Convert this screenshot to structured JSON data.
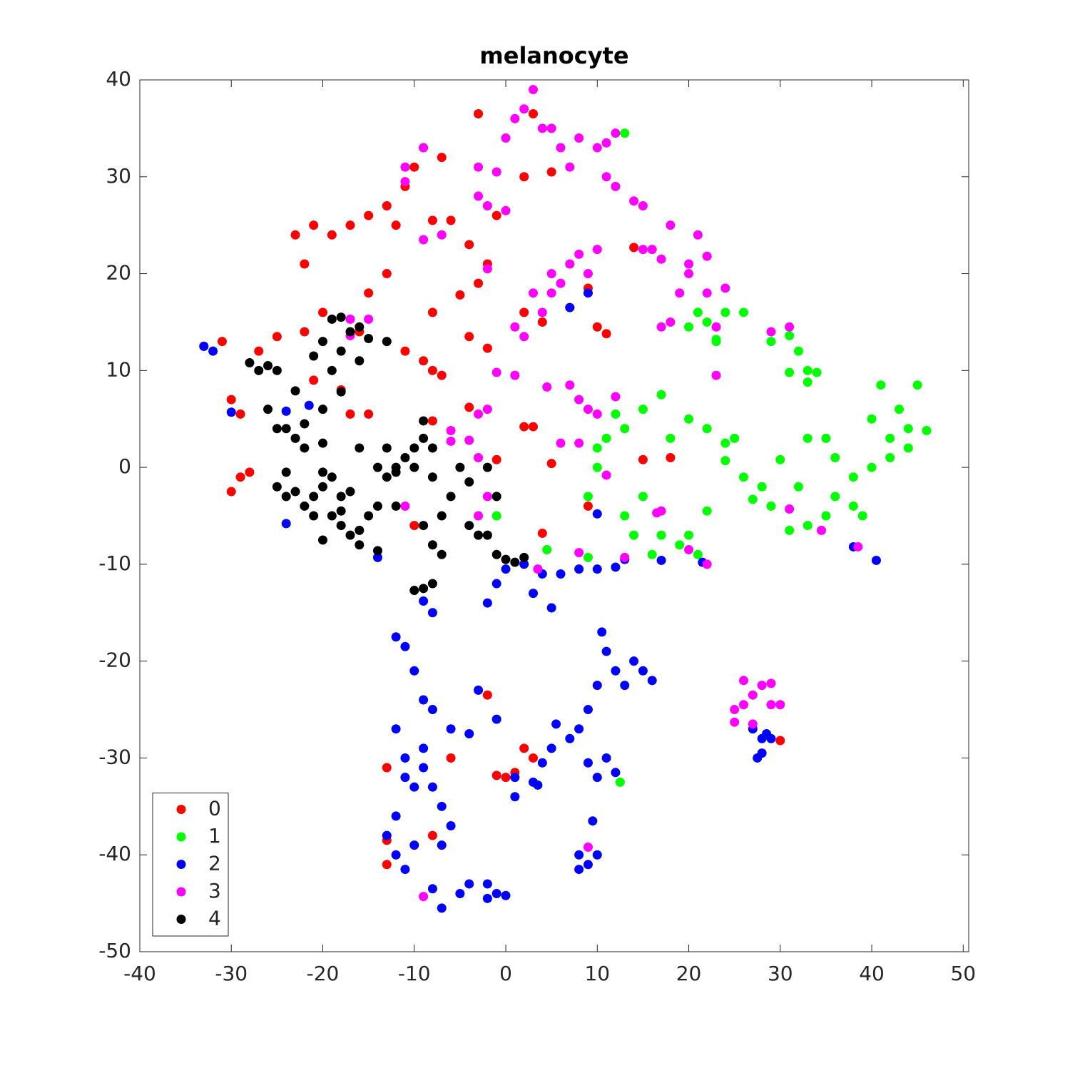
{
  "chart_data": {
    "type": "scatter",
    "title": "melanocyte",
    "xlim": [
      -40,
      50.6
    ],
    "ylim": [
      -50,
      40
    ],
    "xticks": [
      -40,
      -30,
      -20,
      -10,
      0,
      10,
      20,
      30,
      40,
      50
    ],
    "yticks": [
      -50,
      -40,
      -30,
      -20,
      -10,
      0,
      10,
      20,
      30,
      40
    ],
    "grid": false,
    "box": true,
    "legend": "lower left",
    "series": [
      {
        "name": "0",
        "color": "#ff0000",
        "x": [
          -33,
          -31,
          -30,
          -29,
          -29,
          -30,
          -28,
          -27,
          -25,
          -23,
          -21,
          -19,
          -22,
          -20,
          -17,
          -15,
          -13,
          -11,
          -10,
          -9,
          -7,
          -8,
          -6,
          -4,
          -3,
          -1,
          2,
          3,
          -3,
          -15,
          -13,
          -11,
          -9,
          -8,
          -7,
          -8,
          -4,
          -2,
          2,
          4,
          7,
          9,
          10,
          11,
          14,
          -21,
          -22,
          -18,
          -17,
          -15,
          -4,
          2,
          3,
          5,
          15,
          18,
          9,
          -10,
          4,
          -2,
          -6,
          -13,
          -13,
          -13,
          -8,
          -1,
          1,
          2,
          3,
          0,
          30,
          -16,
          -12,
          -5,
          5,
          -2,
          -1,
          -8
        ],
        "y": [
          12.5,
          13,
          7,
          5.5,
          -1,
          -2.5,
          -0.5,
          12,
          13.5,
          24,
          25,
          24,
          21,
          16,
          25,
          26,
          27,
          29,
          31,
          33,
          32,
          25.5,
          25.5,
          23,
          19,
          26,
          30,
          36.5,
          36.5,
          18,
          20,
          12,
          11,
          10,
          9.5,
          16,
          13.5,
          12.3,
          16,
          15,
          16.5,
          18.5,
          14.5,
          13.8,
          22.7,
          9,
          14,
          8,
          5.5,
          5.5,
          6.2,
          4.2,
          4.2,
          0.4,
          0.8,
          1,
          -4,
          -6,
          -6.8,
          -23.5,
          -30,
          -31,
          -38.5,
          -41,
          -38,
          -31.8,
          -31.5,
          -29,
          -30,
          -32,
          -28.2,
          14,
          25,
          17.8,
          30.5,
          21,
          0.8,
          4.8
        ]
      },
      {
        "name": "1",
        "color": "#00ff00",
        "x": [
          13,
          21,
          22,
          24,
          26,
          20,
          23,
          29,
          31,
          32,
          33,
          34,
          31,
          33,
          41,
          45,
          43,
          40,
          42,
          44,
          46,
          44,
          42,
          40,
          38,
          36,
          35,
          36,
          35,
          33,
          31,
          29,
          28,
          26,
          24,
          24,
          25,
          22,
          20,
          18,
          17,
          15,
          13,
          11,
          10,
          10,
          9,
          13,
          14,
          15,
          16,
          17,
          19,
          20,
          21,
          13,
          9,
          4.5,
          -1,
          -1,
          12,
          22,
          38,
          30,
          32,
          27,
          39,
          12.5,
          33,
          23
        ],
        "y": [
          34.5,
          16,
          15,
          16,
          16,
          14.5,
          13,
          13,
          13.6,
          12,
          10,
          9.8,
          9.8,
          8.8,
          8.5,
          8.5,
          6,
          5,
          3,
          4,
          3.8,
          2,
          1,
          0,
          -1,
          1,
          3,
          -3,
          -5,
          -6,
          -6.5,
          -4,
          -2,
          -1,
          0.7,
          2.5,
          3,
          4,
          5,
          3,
          7.5,
          6,
          4,
          3,
          2,
          0,
          -3,
          -5,
          -7,
          -3,
          -9,
          -7,
          -8,
          -7,
          -9,
          -9.5,
          -9.3,
          -8.5,
          -5,
          -3,
          5.5,
          -4.5,
          -4,
          0.8,
          -2,
          -3.3,
          -5,
          -32.5,
          3,
          13.2
        ]
      },
      {
        "name": "2",
        "color": "#0000ff",
        "x": [
          -33,
          -32,
          -30,
          -24,
          -21.5,
          -24,
          -14,
          -9,
          -8,
          -2,
          -1,
          0,
          2,
          3,
          4,
          5,
          6,
          8,
          10,
          12,
          13,
          17,
          21.5,
          10,
          9,
          7,
          38,
          40.5,
          -12,
          -11,
          -10,
          -9,
          -8,
          -6,
          -4,
          -3,
          -1,
          1,
          3,
          4,
          5,
          7,
          8,
          9,
          10,
          10.5,
          11,
          12,
          13,
          14,
          15,
          16,
          9,
          10,
          11,
          12,
          8,
          9,
          8,
          10,
          9.5,
          -13,
          -12,
          -11,
          -10,
          -12,
          -10,
          -11,
          -12,
          -9,
          -8,
          -7,
          -6,
          -7,
          -8,
          -7,
          -5,
          -4,
          -2,
          -1,
          0,
          -2,
          27,
          28,
          29,
          28.5,
          28,
          27.5,
          -11,
          -9,
          3.5,
          5.5,
          1
        ],
        "y": [
          12.5,
          12,
          5.7,
          5.8,
          6.4,
          -5.8,
          -9.3,
          -13.8,
          -15,
          -14,
          -12,
          -10.5,
          -10,
          -13,
          -11,
          -14.5,
          -11,
          -10.5,
          -10.5,
          -10.3,
          -9.5,
          -9.6,
          -9.8,
          -4.8,
          18,
          16.5,
          -8.2,
          -9.6,
          -17.5,
          -18.5,
          -21,
          -24,
          -25,
          -27,
          -27.5,
          -23,
          -26,
          -32,
          -32.5,
          -30.5,
          -29,
          -28,
          -27,
          -25,
          -22.5,
          -17,
          -19,
          -21,
          -22.5,
          -20,
          -21,
          -22,
          -30.5,
          -32,
          -30,
          -31.5,
          -40,
          -41,
          -41.5,
          -40,
          -36.5,
          -38,
          -40,
          -41.5,
          -39,
          -36,
          -33,
          -30,
          -27,
          -31,
          -33,
          -35,
          -37,
          -39,
          -43.5,
          -45.5,
          -44,
          -43,
          -43,
          -44,
          -44.2,
          -44.5,
          -27,
          -28,
          -28,
          -27.5,
          -29.5,
          -30,
          -32,
          -29,
          -32.8,
          -26.5,
          -34
        ]
      },
      {
        "name": "3",
        "color": "#ff00ff",
        "x": [
          -9,
          -11,
          -11,
          -3,
          -3,
          -2,
          0,
          -1,
          0,
          1,
          2,
          3,
          4,
          5,
          6,
          7,
          8,
          10,
          11,
          12,
          11,
          12,
          14,
          15,
          -9,
          -7,
          -2,
          1,
          2,
          3,
          5,
          6,
          7,
          8,
          9,
          10,
          5,
          4,
          16,
          17,
          18,
          20,
          19,
          18,
          17,
          22,
          24,
          21,
          23,
          23,
          29,
          31,
          4.5,
          7,
          8,
          9,
          10,
          12,
          8,
          6,
          -3,
          -2,
          -4,
          -3,
          -6,
          -6,
          -11,
          11,
          13,
          8,
          3.5,
          22,
          17,
          -17,
          -15,
          -17,
          -3,
          28,
          26,
          27,
          29,
          25,
          26,
          27,
          30,
          29,
          25,
          9,
          -9,
          38.5,
          34.5,
          31,
          -2,
          16.5,
          20,
          1,
          -1,
          15,
          20,
          22
        ],
        "y": [
          33,
          29.5,
          31,
          31,
          28,
          27,
          26.5,
          30.5,
          34,
          36,
          37,
          39,
          35,
          35,
          33,
          31,
          34,
          33,
          33.5,
          34.5,
          30,
          29,
          27.5,
          27,
          23.5,
          24,
          20.5,
          14.5,
          13.5,
          18,
          20,
          19,
          21,
          22,
          20,
          22.5,
          18,
          16,
          22.5,
          21.5,
          25,
          20,
          18,
          15,
          14.5,
          18,
          18.5,
          24,
          14.5,
          9.5,
          14,
          14.5,
          8.3,
          8.5,
          7,
          6,
          5.5,
          7.3,
          2.5,
          2.5,
          5.5,
          6,
          2.8,
          1,
          3.8,
          2.7,
          -4,
          -0.8,
          -9.3,
          -8.8,
          -10.5,
          -10,
          -4.5,
          15.3,
          15.3,
          13.6,
          -5,
          -22.5,
          -22,
          -23.5,
          -24.5,
          -25,
          -24.5,
          -26.5,
          -24.5,
          -22.3,
          -26.3,
          -39.2,
          -44.3,
          -8.2,
          -6.5,
          -4.3,
          -3,
          -4.7,
          -8.5,
          9.5,
          9.8,
          22.5,
          21,
          21.8
        ]
      },
      {
        "name": "4",
        "color": "#000000",
        "x": [
          -19,
          -18,
          -17,
          -16,
          -15,
          -16,
          -18,
          -20,
          -21,
          -19,
          -23,
          -25,
          -26,
          -27,
          -28,
          -26,
          -25,
          -24,
          -23,
          -22,
          -20,
          -20,
          -22,
          -24,
          -25,
          -24,
          -22,
          -21,
          -20,
          -19,
          -18,
          -17,
          -19,
          -18,
          -17,
          -16,
          -15,
          -14,
          -16,
          -20,
          -13,
          -12,
          -11,
          -10,
          -9,
          -8,
          -9,
          -10,
          -12,
          -9,
          -8,
          -7,
          -7,
          -8,
          -9,
          -10,
          -4,
          -3,
          -2,
          -1,
          0,
          1,
          2,
          -5,
          -4,
          -2,
          -14,
          -16,
          -13,
          -20,
          -18,
          -1,
          -8,
          -6,
          -14,
          -13,
          -18,
          -23,
          -21,
          -12
        ],
        "y": [
          15.3,
          15.5,
          14,
          14.5,
          13.3,
          11,
          12,
          13,
          11.5,
          10,
          7.9,
          10,
          10.5,
          10,
          10.8,
          6,
          4,
          4,
          3,
          4.5,
          6,
          2.5,
          2,
          -0.5,
          -2,
          -3,
          -4,
          -3,
          -2,
          -1,
          -3,
          -2.5,
          -5,
          -6,
          -7,
          -8,
          -5,
          -8.6,
          -6.5,
          -7.5,
          -1,
          0,
          1,
          2,
          3,
          2,
          4.8,
          0,
          -4,
          -6,
          -8,
          -5,
          -9,
          -12,
          -12.5,
          -12.7,
          -6,
          -7,
          -7,
          -9,
          -9.5,
          -9.8,
          -9.3,
          0,
          -1.5,
          0,
          0,
          2,
          2,
          -0.5,
          -4.5,
          -3,
          -1,
          -3,
          -4,
          13,
          7.8,
          -2.5,
          -5,
          -0.5
        ]
      }
    ]
  }
}
